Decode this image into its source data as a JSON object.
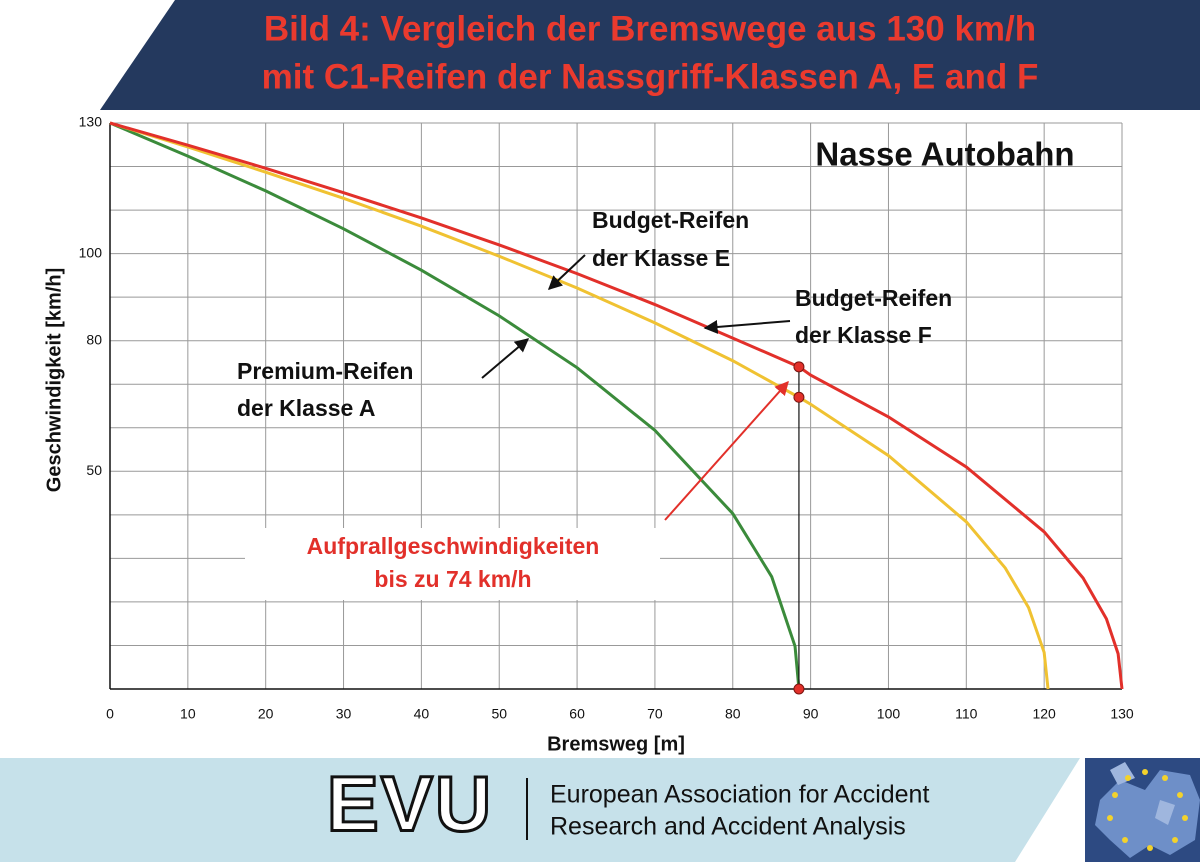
{
  "chart_data": {
    "type": "line",
    "title": [
      "Bild 4: Vergleich der Bremswege aus 130 km/h",
      "mit C1-Reifen der Nassgriff-Klassen A, E and F"
    ],
    "subtitle": "Nasse Autobahn",
    "x_label": "Bremsweg [m]",
    "y_label": "Geschwindigkeit [km/h]",
    "xlim": [
      0,
      130
    ],
    "xticks": [
      0,
      10,
      20,
      30,
      40,
      50,
      60,
      70,
      80,
      90,
      100,
      110,
      120,
      130
    ],
    "ylim": [
      0,
      130
    ],
    "yticks": [
      50,
      80,
      100,
      130
    ],
    "ygrid": [
      10,
      20,
      30,
      40,
      60,
      70,
      90,
      110,
      120
    ],
    "grid": true,
    "series": [
      {
        "color": "#3b8b3b",
        "x": [
          0,
          10,
          20,
          30,
          40,
          50,
          60,
          70,
          80,
          85,
          88,
          88.5
        ],
        "values": [
          130,
          122.4,
          114.4,
          105.7,
          96.2,
          85.7,
          73.8,
          59.4,
          40.3,
          25.8,
          9.8,
          0
        ]
      },
      {
        "color": "#f0c232",
        "x": [
          0,
          10,
          20,
          30,
          40,
          50,
          60,
          70,
          80,
          88.5,
          90,
          100,
          110,
          115,
          118,
          120,
          120.5
        ],
        "values": [
          130,
          124.5,
          118.7,
          112.7,
          106.3,
          99.4,
          92.1,
          84.1,
          75.4,
          67,
          65.4,
          53.6,
          38.4,
          27.8,
          18.7,
          8.4,
          0
        ]
      },
      {
        "color": "#e2302a",
        "x": [
          0,
          10,
          20,
          30,
          40,
          50,
          60,
          70,
          80,
          88.5,
          90,
          100,
          110,
          120,
          125,
          128,
          129.5,
          130
        ],
        "values": [
          130,
          124.9,
          119.6,
          114,
          108.2,
          102,
          95.4,
          88.3,
          80.6,
          74,
          72.1,
          62.5,
          51,
          36.1,
          25.5,
          16.1,
          8.1,
          0
        ]
      }
    ],
    "impact_points": {
      "color": "#e2302a",
      "x": [
        88.5,
        88.5,
        88.5
      ],
      "values": [
        74,
        67,
        0
      ]
    },
    "annotations": [
      {
        "lines": [
          "Budget-Reifen",
          "der Klasse E"
        ]
      },
      {
        "lines": [
          "Budget-Reifen",
          "der Klasse F"
        ]
      },
      {
        "lines": [
          "Premium-Reifen",
          "der Klasse A"
        ]
      },
      {
        "lines": [
          "Aufprallgeschwindigkeiten",
          "bis zu 74 km/h"
        ]
      }
    ]
  },
  "footer": {
    "logo": "EVU",
    "organization": [
      "European Association for Accident",
      "Research and Accident Analysis"
    ]
  }
}
